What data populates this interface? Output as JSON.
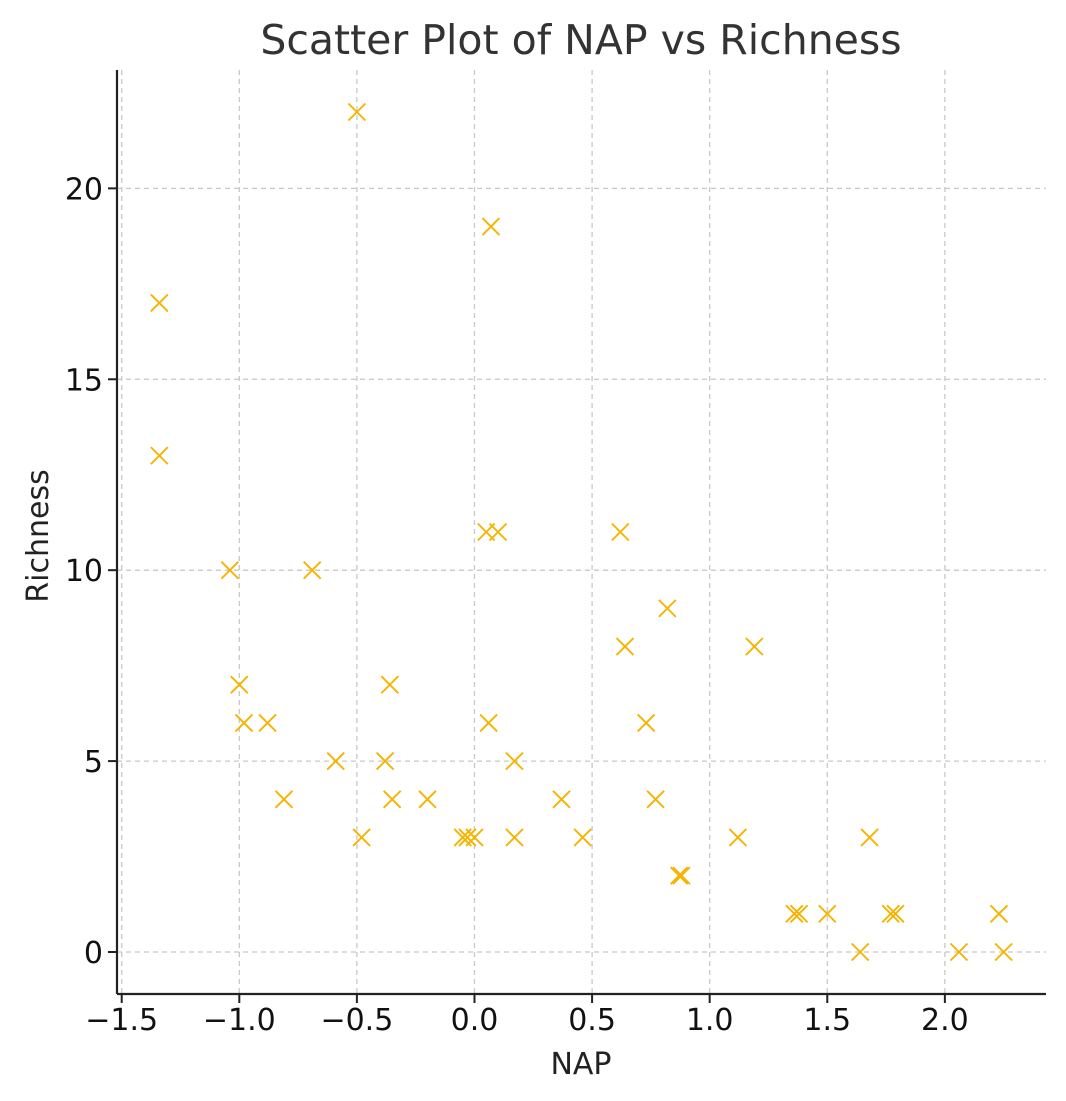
{
  "chart_data": {
    "type": "scatter",
    "title": "Scatter Plot of NAP vs Richness",
    "xlabel": "NAP",
    "ylabel": "Richness",
    "xlim": [
      -1.52,
      2.43
    ],
    "ylim": [
      -1.1,
      23.1
    ],
    "xticks": [
      -1.5,
      -1.0,
      -0.5,
      0.0,
      0.5,
      1.0,
      1.5,
      2.0
    ],
    "xtick_labels": [
      "−1.5",
      "−1.0",
      "−0.5",
      "0.0",
      "0.5",
      "1.0",
      "1.5",
      "2.0"
    ],
    "yticks": [
      0,
      5,
      10,
      15,
      20
    ],
    "ytick_labels": [
      "0",
      "5",
      "10",
      "15",
      "20"
    ],
    "grid": true,
    "marker": "x",
    "color": "#f5b400",
    "points": [
      {
        "x": -1.34,
        "y": 17
      },
      {
        "x": -1.34,
        "y": 13
      },
      {
        "x": -1.04,
        "y": 10
      },
      {
        "x": -1.0,
        "y": 7
      },
      {
        "x": -0.98,
        "y": 6
      },
      {
        "x": -0.88,
        "y": 6
      },
      {
        "x": -0.81,
        "y": 4
      },
      {
        "x": -0.69,
        "y": 10
      },
      {
        "x": -0.59,
        "y": 5
      },
      {
        "x": -0.5,
        "y": 22
      },
      {
        "x": -0.48,
        "y": 3
      },
      {
        "x": -0.38,
        "y": 5
      },
      {
        "x": -0.36,
        "y": 7
      },
      {
        "x": -0.35,
        "y": 4
      },
      {
        "x": -0.2,
        "y": 4
      },
      {
        "x": -0.05,
        "y": 3
      },
      {
        "x": -0.03,
        "y": 3
      },
      {
        "x": 0.0,
        "y": 3
      },
      {
        "x": 0.05,
        "y": 11
      },
      {
        "x": 0.06,
        "y": 6
      },
      {
        "x": 0.07,
        "y": 19
      },
      {
        "x": 0.1,
        "y": 11
      },
      {
        "x": 0.17,
        "y": 5
      },
      {
        "x": 0.17,
        "y": 3
      },
      {
        "x": 0.37,
        "y": 4
      },
      {
        "x": 0.46,
        "y": 3
      },
      {
        "x": 0.62,
        "y": 11
      },
      {
        "x": 0.64,
        "y": 8
      },
      {
        "x": 0.73,
        "y": 6
      },
      {
        "x": 0.77,
        "y": 4
      },
      {
        "x": 0.82,
        "y": 9
      },
      {
        "x": 0.87,
        "y": 2
      },
      {
        "x": 0.88,
        "y": 2
      },
      {
        "x": 1.12,
        "y": 3
      },
      {
        "x": 1.19,
        "y": 8
      },
      {
        "x": 1.36,
        "y": 1
      },
      {
        "x": 1.38,
        "y": 1
      },
      {
        "x": 1.5,
        "y": 1
      },
      {
        "x": 1.64,
        "y": 0
      },
      {
        "x": 1.68,
        "y": 3
      },
      {
        "x": 1.77,
        "y": 1
      },
      {
        "x": 1.79,
        "y": 1
      },
      {
        "x": 2.06,
        "y": 0
      },
      {
        "x": 2.23,
        "y": 1
      },
      {
        "x": 2.25,
        "y": 0
      }
    ]
  }
}
